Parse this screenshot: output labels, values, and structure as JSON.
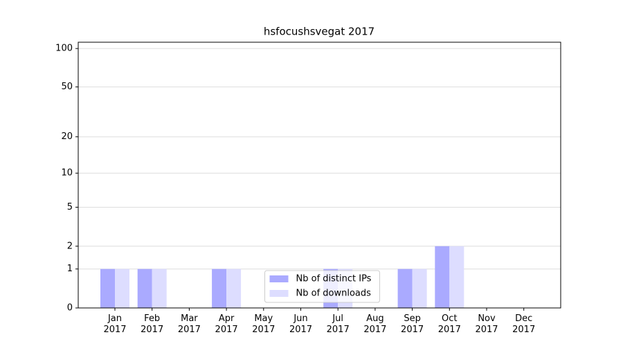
{
  "chart_data": {
    "type": "bar",
    "title": "hsfocushsvegat 2017",
    "categories": [
      "Jan\n2017",
      "Feb\n2017",
      "Mar\n2017",
      "Apr\n2017",
      "May\n2017",
      "Jun\n2017",
      "Jul\n2017",
      "Aug\n2017",
      "Sep\n2017",
      "Oct\n2017",
      "Nov\n2017",
      "Dec\n2017"
    ],
    "series": [
      {
        "name": "Nb of distinct IPs",
        "color": "#aaaaff",
        "values": [
          1,
          1,
          0,
          1,
          0,
          0,
          1,
          0,
          1,
          2,
          0,
          0
        ]
      },
      {
        "name": "Nb of downloads",
        "color": "#ddddff",
        "values": [
          1,
          1,
          0,
          1,
          0,
          0,
          1,
          0,
          1,
          2,
          0,
          0
        ]
      }
    ],
    "yscale": "log1p",
    "ylim": [
      0,
      112
    ],
    "yticks": [
      0,
      1,
      2,
      5,
      10,
      20,
      50,
      100
    ],
    "grid": true,
    "legend": "lower center"
  }
}
